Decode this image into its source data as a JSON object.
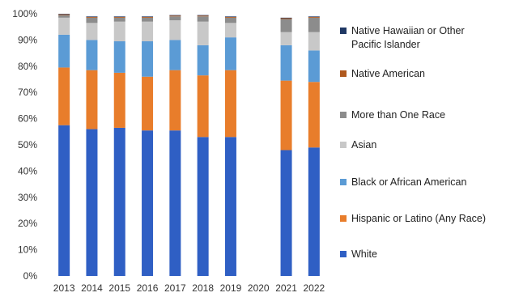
{
  "chart_data": {
    "type": "bar",
    "stacked": true,
    "categories": [
      "2013",
      "2014",
      "2015",
      "2016",
      "2017",
      "2018",
      "2019",
      "2020",
      "2021",
      "2022"
    ],
    "series": [
      {
        "name": "White",
        "color": "#2f5fc4",
        "values": [
          57.5,
          56,
          56.5,
          55.5,
          55.5,
          53,
          53,
          null,
          48,
          49
        ]
      },
      {
        "name": "Hispanic or Latino (Any Race)",
        "color": "#e87d2b",
        "values": [
          22,
          22.5,
          21,
          20.5,
          23,
          23.5,
          25.5,
          null,
          26.5,
          25
        ]
      },
      {
        "name": "Black or African American",
        "color": "#5b9bd5",
        "values": [
          12.5,
          11.5,
          12,
          13.5,
          11.5,
          11.5,
          12.5,
          null,
          13.5,
          12
        ]
      },
      {
        "name": "Asian",
        "color": "#c8c8c8",
        "values": [
          6.5,
          6.5,
          7.5,
          7.5,
          7.5,
          9,
          5.5,
          null,
          5,
          7
        ]
      },
      {
        "name": "More than One Race",
        "color": "#8c8c8c",
        "values": [
          1,
          2,
          1.5,
          1.5,
          1.5,
          2,
          2,
          null,
          5,
          5.5
        ]
      },
      {
        "name": "Native American",
        "color": "#b0591e",
        "values": [
          0.3,
          0.3,
          0.3,
          0.3,
          0.3,
          0.3,
          0.3,
          null,
          0.3,
          0.3
        ]
      },
      {
        "name": "Native Hawaiian or Other Pacific Islander",
        "color": "#1f3864",
        "values": [
          0.2,
          0.2,
          0.2,
          0.2,
          0.2,
          0.2,
          0.2,
          null,
          0.2,
          0.2
        ]
      }
    ],
    "ylim": [
      0,
      100
    ],
    "yticks": [
      "0%",
      "10%",
      "20%",
      "30%",
      "40%",
      "50%",
      "60%",
      "70%",
      "80%",
      "90%",
      "100%"
    ],
    "legend_placement": "right",
    "legend_order": [
      "Native Hawaiian or Other Pacific Islander",
      "Native American",
      "More than One Race",
      "Asian",
      "Black or African American",
      "Hispanic or Latino (Any Race)",
      "White"
    ],
    "legend_labels": [
      [
        "Native Hawaiian or Other",
        "Pacific Islander"
      ],
      [
        "Native American"
      ],
      [
        "More than One Race"
      ],
      [
        "Asian"
      ],
      [
        "Black or African American"
      ],
      [
        "Hispanic or Latino (Any Race)"
      ],
      [
        "White"
      ]
    ]
  }
}
